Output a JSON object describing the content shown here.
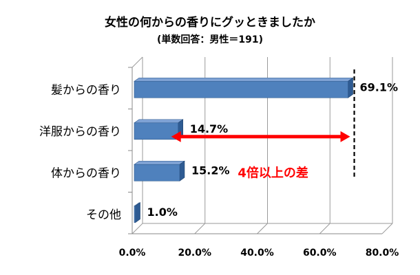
{
  "chart_data": {
    "type": "bar",
    "orientation": "horizontal",
    "title": "女性の何からの香りにグッときましたか",
    "subtitle": "(単数回答：男性＝191)",
    "categories": [
      "髪からの香り",
      "洋服からの香り",
      "体からの香り",
      "その他"
    ],
    "values": [
      69.1,
      14.7,
      15.2,
      1.0
    ],
    "value_labels": [
      "69.1%",
      "14.7%",
      "15.2%",
      "1.0%"
    ],
    "xticks": [
      "0.0%",
      "20.0%",
      "40.0%",
      "60.0%",
      "80.0%"
    ],
    "xlim": [
      0,
      80
    ],
    "grid": true,
    "bar_color": "#4F81BD",
    "annotation": {
      "text": "4倍以上の差",
      "color": "#FF0000"
    }
  }
}
